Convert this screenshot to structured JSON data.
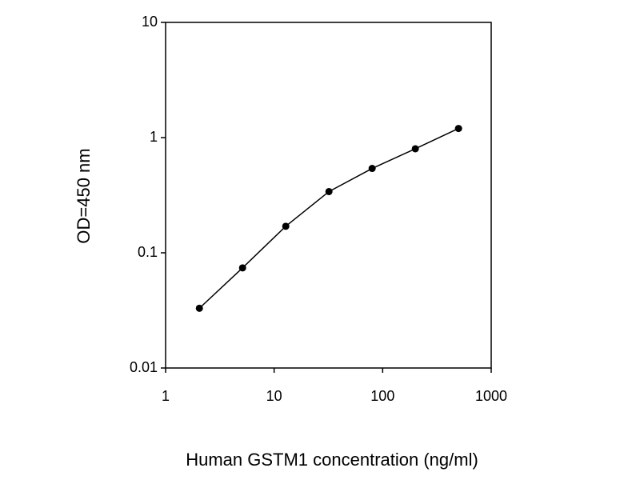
{
  "chart_data": {
    "type": "line",
    "x_label": "Human GSTM1 concentration (ng/ml)",
    "y_label": "OD=450 nm",
    "x": [
      2.048,
      5.12,
      12.8,
      32,
      80,
      200,
      500
    ],
    "values": [
      0.033,
      0.074,
      0.17,
      0.34,
      0.54,
      0.8,
      1.2
    ],
    "color": "#000000",
    "xlim": [
      1,
      1000
    ],
    "xticks": [
      1,
      10,
      100,
      1000
    ],
    "xlog": true,
    "ylim": [
      0.01,
      10
    ],
    "yticks": [
      0.01,
      0.1,
      1,
      10
    ],
    "ylog": true,
    "grid": false
  }
}
